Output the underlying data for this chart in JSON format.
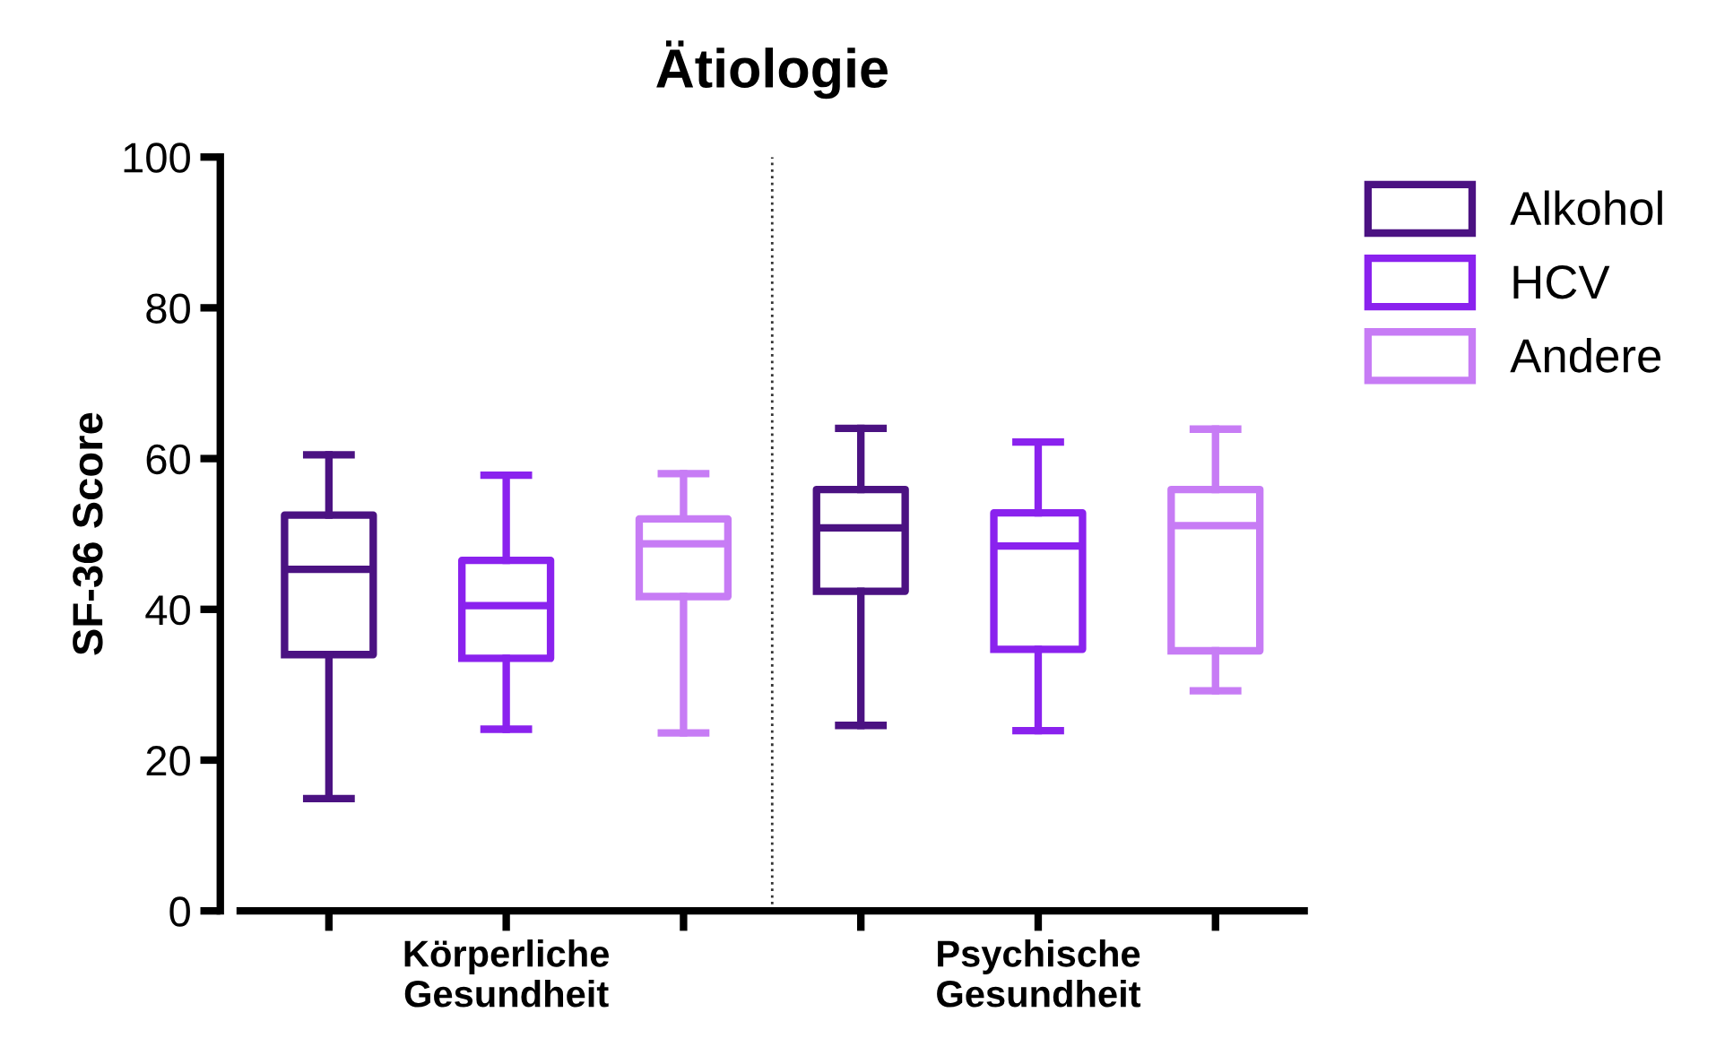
{
  "chart_data": {
    "type": "box",
    "title": "Ätiologie",
    "ylabel": "SF-36 Score",
    "categories": [
      null,
      "Körperliche\nGesundheit",
      null,
      null,
      "Psychische\nGesundheit",
      null
    ],
    "ylim": [
      0,
      100
    ],
    "yticks": [
      0,
      20,
      40,
      60,
      80,
      100
    ],
    "grid": false,
    "legend": "top right",
    "series": [
      {
        "name": "Alkohol",
        "color": "#4b1282",
        "boxes": [
          {
            "low": 14.9,
            "q1": 34,
            "median": 45.3,
            "q3": 52.5,
            "high": 60.5
          },
          null,
          null,
          {
            "low": 24.6,
            "q1": 42.4,
            "median": 50.8,
            "q3": 55.9,
            "high": 64
          },
          null,
          null
        ]
      },
      {
        "name": "HCV",
        "color": "#8a22ee",
        "boxes": [
          null,
          {
            "low": 24.1,
            "q1": 33.5,
            "median": 40.5,
            "q3": 46.5,
            "high": 57.8
          },
          null,
          null,
          {
            "low": 23.9,
            "q1": 34.7,
            "median": 48.4,
            "q3": 52.8,
            "high": 62.2
          },
          null
        ]
      },
      {
        "name": "Andere",
        "color": "#c77cf5",
        "boxes": [
          null,
          null,
          {
            "low": 23.6,
            "q1": 41.7,
            "median": 48.7,
            "q3": 52,
            "high": 58
          },
          null,
          null,
          {
            "low": 29.2,
            "q1": 34.5,
            "median": 51.1,
            "q3": 55.9,
            "high": 63.9
          }
        ]
      }
    ]
  }
}
